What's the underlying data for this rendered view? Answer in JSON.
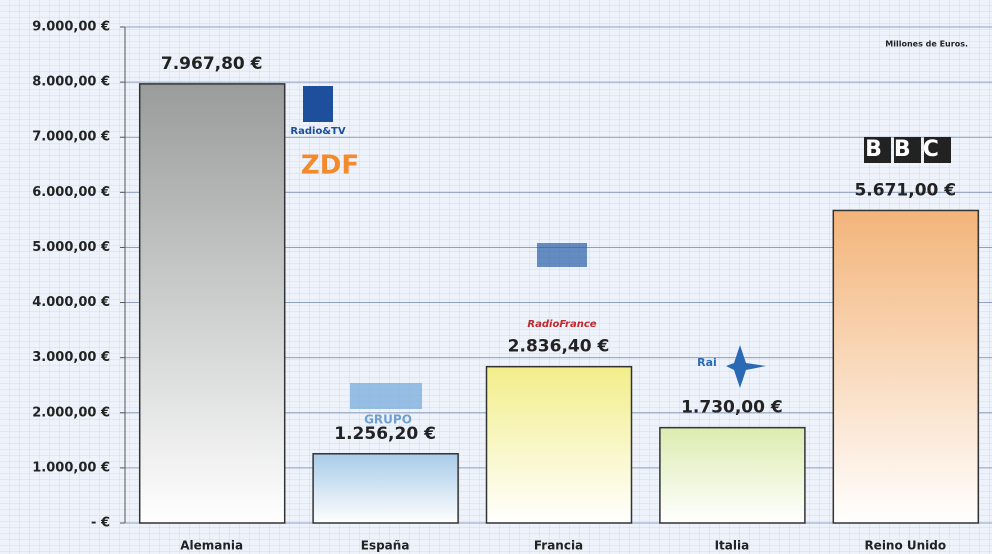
{
  "chart_data": {
    "type": "bar",
    "annotation": "Millones de Euros.",
    "categories": [
      "Alemania",
      "España",
      "Francia",
      "Italia",
      "Reino Unido"
    ],
    "values": [
      7967.8,
      1256.2,
      2836.4,
      1730.0,
      5671.0
    ],
    "value_labels": [
      "7.967,80 €",
      "1.256,20 €",
      "2.836,40 €",
      "1.730,00 €",
      "5.671,00 €"
    ],
    "colors": [
      "#9a9c9c",
      "#a8cbe8",
      "#f2ee8a",
      "#dcecb0",
      "#f3b47a"
    ],
    "ylim": [
      0,
      9000
    ],
    "yticks": [
      {
        "value": 0,
        "label": "-     €"
      },
      {
        "value": 1000,
        "label": "1.000,00 €"
      },
      {
        "value": 2000,
        "label": "2.000,00 €"
      },
      {
        "value": 3000,
        "label": "3.000,00 €"
      },
      {
        "value": 4000,
        "label": "4.000,00 €"
      },
      {
        "value": 5000,
        "label": "5.000,00 €"
      },
      {
        "value": 6000,
        "label": "6.000,00 €"
      },
      {
        "value": 7000,
        "label": "7.000,00 €"
      },
      {
        "value": 8000,
        "label": "8.000,00 €"
      },
      {
        "value": 9000,
        "label": "9.000,00 €"
      }
    ],
    "grid": true,
    "logos": [
      "Radio&TV",
      "ZDF",
      "GRUPO",
      "RadioFrance",
      "Rai",
      "BBC"
    ]
  }
}
